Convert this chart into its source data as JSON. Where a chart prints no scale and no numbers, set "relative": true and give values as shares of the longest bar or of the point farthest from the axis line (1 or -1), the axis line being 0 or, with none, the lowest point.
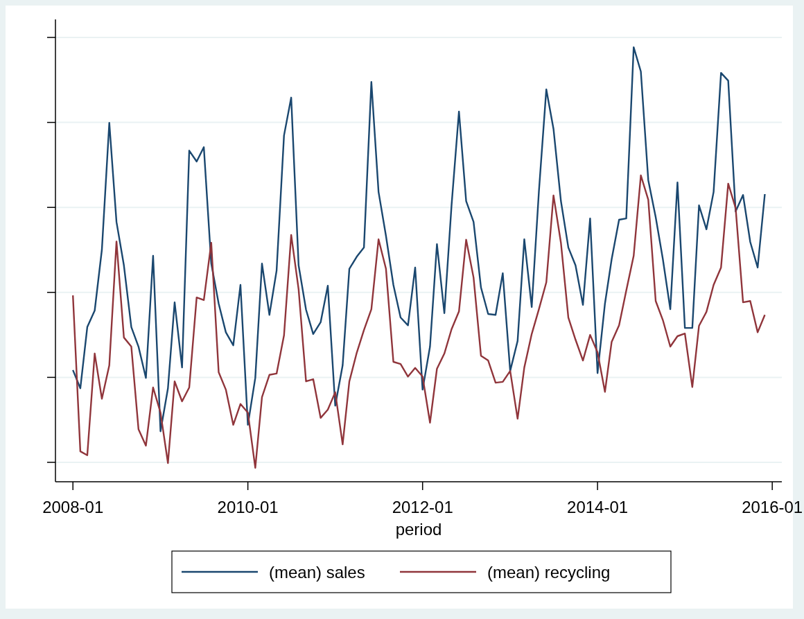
{
  "chart_data": {
    "type": "line",
    "relative": true,
    "xlabel": "period",
    "grid": "y",
    "legend": "bottom",
    "marker": "none",
    "line_style": "solid",
    "xlim": [
      "2007-10-20",
      "2016-02-10"
    ],
    "xticks": [
      {
        "value": "2008-01",
        "label": "2008-01"
      },
      {
        "value": "2010-01",
        "label": "2010-01"
      },
      {
        "value": "2012-01",
        "label": "2012-01"
      },
      {
        "value": "2014-01",
        "label": "2014-01"
      },
      {
        "value": "2016-01",
        "label": "2016-01"
      }
    ],
    "x": [
      "2008-01",
      "2008-02",
      "2008-03",
      "2008-04",
      "2008-05",
      "2008-06",
      "2008-07",
      "2008-08",
      "2008-09",
      "2008-10",
      "2008-11",
      "2008-12",
      "2009-01",
      "2009-02",
      "2009-03",
      "2009-04",
      "2009-05",
      "2009-06",
      "2009-07",
      "2009-08",
      "2009-09",
      "2009-10",
      "2009-11",
      "2009-12",
      "2010-01",
      "2010-02",
      "2010-03",
      "2010-04",
      "2010-05",
      "2010-06",
      "2010-07",
      "2010-08",
      "2010-09",
      "2010-10",
      "2010-11",
      "2010-12",
      "2011-01",
      "2011-02",
      "2011-03",
      "2011-04",
      "2011-05",
      "2011-06",
      "2011-07",
      "2011-08",
      "2011-09",
      "2011-10",
      "2011-11",
      "2011-12",
      "2012-01",
      "2012-02",
      "2012-03",
      "2012-04",
      "2012-05",
      "2012-06",
      "2012-07",
      "2012-08",
      "2012-09",
      "2012-10",
      "2012-11",
      "2012-12",
      "2013-01",
      "2013-02",
      "2013-03",
      "2013-04",
      "2013-05",
      "2013-06",
      "2013-07",
      "2013-08",
      "2013-09",
      "2013-10",
      "2013-11",
      "2013-12",
      "2014-01",
      "2014-02",
      "2014-03",
      "2014-04",
      "2014-05",
      "2014-06",
      "2014-07",
      "2014-08",
      "2014-09",
      "2014-10",
      "2014-11",
      "2014-12",
      "2015-01",
      "2015-02",
      "2015-03",
      "2015-04",
      "2015-05",
      "2015-06",
      "2015-07",
      "2015-08",
      "2015-09",
      "2015-10",
      "2015-11",
      "2015-12"
    ],
    "series": [
      {
        "name": "(mean) sales",
        "color": "#1a476f",
        "values": [
          0.257,
          0.215,
          0.356,
          0.394,
          0.534,
          0.826,
          0.598,
          0.498,
          0.356,
          0.311,
          0.239,
          0.52,
          0.116,
          0.215,
          0.413,
          0.263,
          0.762,
          0.737,
          0.77,
          0.502,
          0.41,
          0.344,
          0.314,
          0.453,
          0.131,
          0.239,
          0.502,
          0.384,
          0.486,
          0.797,
          0.884,
          0.498,
          0.396,
          0.34,
          0.367,
          0.451,
          0.175,
          0.268,
          0.49,
          0.518,
          0.539,
          0.92,
          0.667,
          0.566,
          0.453,
          0.378,
          0.36,
          0.493,
          0.212,
          0.311,
          0.547,
          0.388,
          0.636,
          0.852,
          0.646,
          0.598,
          0.447,
          0.386,
          0.384,
          0.48,
          0.255,
          0.324,
          0.558,
          0.402,
          0.668,
          0.903,
          0.812,
          0.646,
          0.539,
          0.498,
          0.407,
          0.606,
          0.25,
          0.41,
          0.512,
          0.603,
          0.606,
          1,
          0.944,
          0.694,
          0.609,
          0.512,
          0.397,
          0.689,
          0.354,
          0.354,
          0.636,
          0.581,
          0.667,
          0.941,
          0.923,
          0.622,
          0.66,
          0.552,
          0.493,
          0.662
        ]
      },
      {
        "name": "(mean) recycling",
        "color": "#90353b",
        "values": [
          0.429,
          0.07,
          0.061,
          0.295,
          0.191,
          0.268,
          0.553,
          0.332,
          0.311,
          0.121,
          0.083,
          0.217,
          0.159,
          0.043,
          0.231,
          0.185,
          0.217,
          0.424,
          0.418,
          0.55,
          0.252,
          0.212,
          0.131,
          0.179,
          0.159,
          0.032,
          0.195,
          0.246,
          0.249,
          0.337,
          0.568,
          0.443,
          0.231,
          0.236,
          0.147,
          0.166,
          0.206,
          0.086,
          0.231,
          0.297,
          0.349,
          0.397,
          0.558,
          0.49,
          0.276,
          0.271,
          0.242,
          0.262,
          0.242,
          0.136,
          0.26,
          0.295,
          0.351,
          0.392,
          0.557,
          0.47,
          0.29,
          0.279,
          0.228,
          0.23,
          0.255,
          0.145,
          0.263,
          0.34,
          0.397,
          0.459,
          0.659,
          0.55,
          0.378,
          0.327,
          0.279,
          0.338,
          0.298,
          0.207,
          0.322,
          0.36,
          0.44,
          0.52,
          0.705,
          0.649,
          0.416,
          0.372,
          0.311,
          0.335,
          0.341,
          0.218,
          0.359,
          0.391,
          0.453,
          0.493,
          0.686,
          0.63,
          0.413,
          0.416,
          0.344,
          0.384
        ]
      }
    ]
  }
}
